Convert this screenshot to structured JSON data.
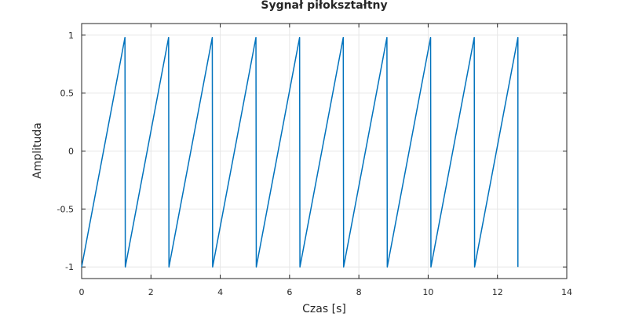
{
  "chart_data": {
    "type": "line",
    "title": "Sygnał piłokształtny",
    "xlabel": "Czas [s]",
    "ylabel": "Amplituda",
    "xlim": [
      0,
      14
    ],
    "ylim": [
      -1.1,
      1.1
    ],
    "x_ticks": [
      0,
      2,
      4,
      6,
      8,
      10,
      12,
      14
    ],
    "y_ticks": [
      -1,
      -0.5,
      0,
      0.5,
      1
    ],
    "x_tick_labels": [
      "0",
      "2",
      "4",
      "6",
      "8",
      "10",
      "12",
      "14"
    ],
    "y_tick_labels": [
      "-1",
      "-0.5",
      "0",
      "0.5",
      "1"
    ],
    "grid": true,
    "line_color": "#0072bd",
    "series": [
      {
        "x": [
          0,
          1.25,
          1.26,
          2.51,
          2.52,
          3.77,
          3.78,
          5.03,
          5.04,
          6.29,
          6.3,
          7.55,
          7.56,
          8.81,
          8.82,
          10.07,
          10.08,
          11.33,
          11.34,
          12.59,
          12.59
        ],
        "y": [
          -1,
          0.98,
          -1,
          0.98,
          -1,
          0.98,
          -1,
          0.98,
          -1,
          0.98,
          -1,
          0.98,
          -1,
          0.98,
          -1,
          0.98,
          -1,
          0.98,
          -1,
          0.98,
          -1
        ]
      }
    ]
  }
}
